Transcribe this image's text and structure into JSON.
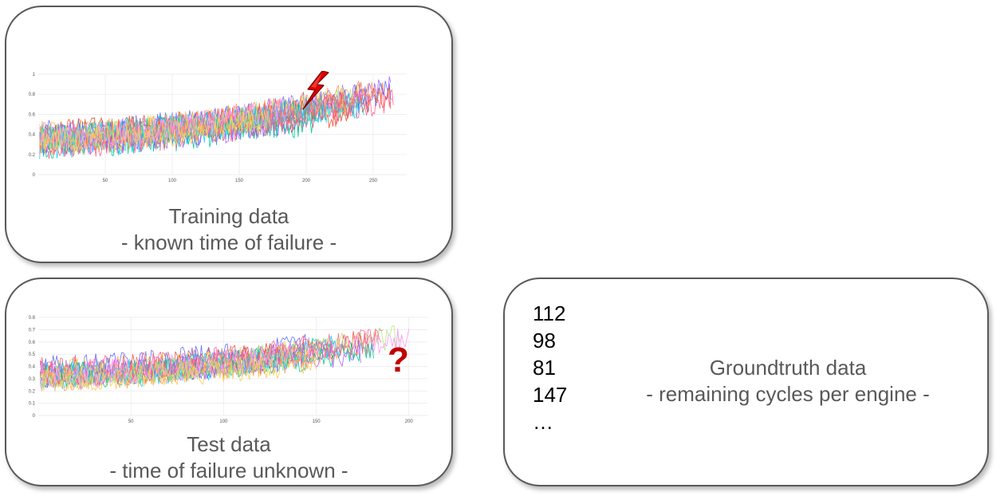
{
  "panels": {
    "training": {
      "title": "Training data",
      "subtitle": "- known time of failure -",
      "marker_icon": "lightning-bolt-icon",
      "marker_color": "#e00000"
    },
    "test": {
      "title": "Test data",
      "subtitle": "- time of failure unknown -",
      "marker_icon": "question-mark-icon",
      "marker_text": "?",
      "marker_color": "#c00000"
    },
    "groundtruth": {
      "values": [
        "112",
        "98",
        "81",
        "147",
        "…"
      ],
      "title": "Groundtruth data",
      "subtitle": "- remaining cycles per engine -"
    }
  },
  "chart_data": [
    {
      "type": "line",
      "panel": "training",
      "x_ticks": [
        "50",
        "100",
        "150",
        "200",
        "250"
      ],
      "y_ticks": [
        "0",
        "0.2",
        "0.4",
        "0.6",
        "0.8",
        "1"
      ],
      "xlim": [
        0,
        275
      ],
      "ylim": [
        0,
        1
      ],
      "grid": true,
      "series_count": 20,
      "trend_start": 0.33,
      "trend_end": 0.75
    },
    {
      "type": "line",
      "panel": "test",
      "x_ticks": [
        "50",
        "100",
        "150",
        "200"
      ],
      "y_ticks": [
        "0",
        "0.1",
        "0.2",
        "0.3",
        "0.4",
        "0.5",
        "0.6",
        "0.7",
        "0.8"
      ],
      "xlim": [
        0,
        210
      ],
      "ylim": [
        0,
        0.8
      ],
      "grid": true,
      "series_count": 20,
      "trend_start": 0.33,
      "trend_end": 0.62
    }
  ],
  "series_colors": [
    "#636efa",
    "#ef553b",
    "#00cc96",
    "#ab63fa",
    "#ffa15a",
    "#19d3f3",
    "#ff6692",
    "#b6e880",
    "#ff97ff",
    "#fecb52"
  ]
}
